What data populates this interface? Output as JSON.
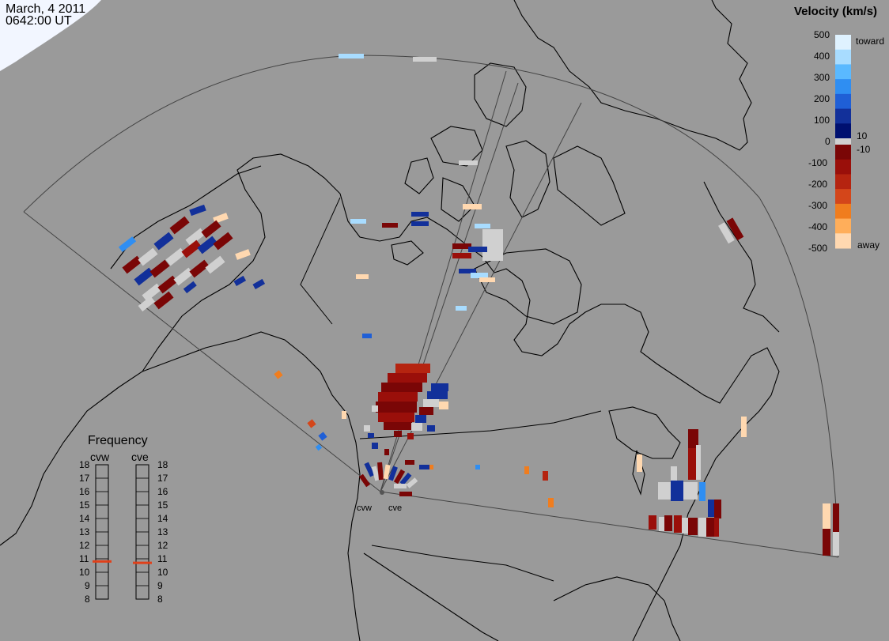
{
  "header": {
    "date": "March, 4 2011",
    "time": "0642:00 UT"
  },
  "colorbar": {
    "title": "Velocity (km/s)",
    "ticks": [
      "500",
      "400",
      "300",
      "200",
      "100",
      "0",
      "-100",
      "-200",
      "-300",
      "-400",
      "-500"
    ],
    "threshold_high": "10",
    "threshold_low": "-10",
    "toward_label": "toward",
    "away_label": "away",
    "colors_toward": [
      "#dff2ff",
      "#a8dcff",
      "#5ab9ff",
      "#2f8ef2",
      "#1f5fd6",
      "#12309a",
      "#001070"
    ],
    "colors_away": [
      "#7a0606",
      "#9a0f0a",
      "#b52410",
      "#d4461a",
      "#f07d1e",
      "#ffae5a",
      "#ffd8b0"
    ],
    "neutral_color": "#d0d0d0"
  },
  "frequency": {
    "title": "Frequency",
    "radar_left": "cvw",
    "radar_right": "cve",
    "ticks": [
      "18",
      "17",
      "16",
      "15",
      "14",
      "13",
      "12",
      "11",
      "10",
      "9",
      "8"
    ],
    "cvw_mhz": 10.8,
    "cve_mhz": 10.7,
    "marker_color": "#e0401a"
  },
  "sites": {
    "left": "cvw",
    "right": "cve"
  },
  "icons": {
    "site_marker": "radar-site-icon"
  }
}
